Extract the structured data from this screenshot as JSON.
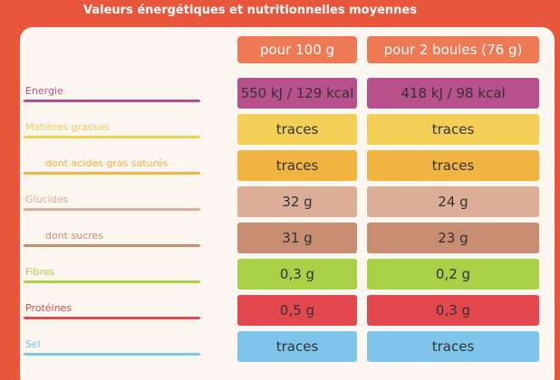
{
  "header": {
    "title": "Valeurs énergétiques et nutritionnelles moyennes"
  },
  "table": {
    "columns": [
      "pour 100 g",
      "pour 2 boules (76 g)"
    ],
    "rows": [
      {
        "label": "Energie",
        "values": [
          "550 kJ / 129 kcal",
          "418 kJ / 98 kcal"
        ],
        "color": "#b8518b"
      },
      {
        "label": "Matières grasses",
        "values": [
          "traces",
          "traces"
        ],
        "color": "#f3cf55"
      },
      {
        "label": "dont acides gras saturés",
        "values": [
          "traces",
          "traces"
        ],
        "color": "#f2b441"
      },
      {
        "label": "Glucides",
        "values": [
          "32 g",
          "24 g"
        ],
        "color": "#dcae97"
      },
      {
        "label": "dont sucres",
        "values": [
          "31 g",
          "23 g"
        ],
        "color": "#c98d71"
      },
      {
        "label": "Fibres",
        "values": [
          "0,3 g",
          "0,2 g"
        ],
        "color": "#aad046"
      },
      {
        "label": "Protéines",
        "values": [
          "0,5 g",
          "0,3 g"
        ],
        "color": "#e2484e"
      },
      {
        "label": "Sel",
        "values": [
          "traces",
          "traces"
        ],
        "color": "#7fc4ea"
      }
    ]
  }
}
